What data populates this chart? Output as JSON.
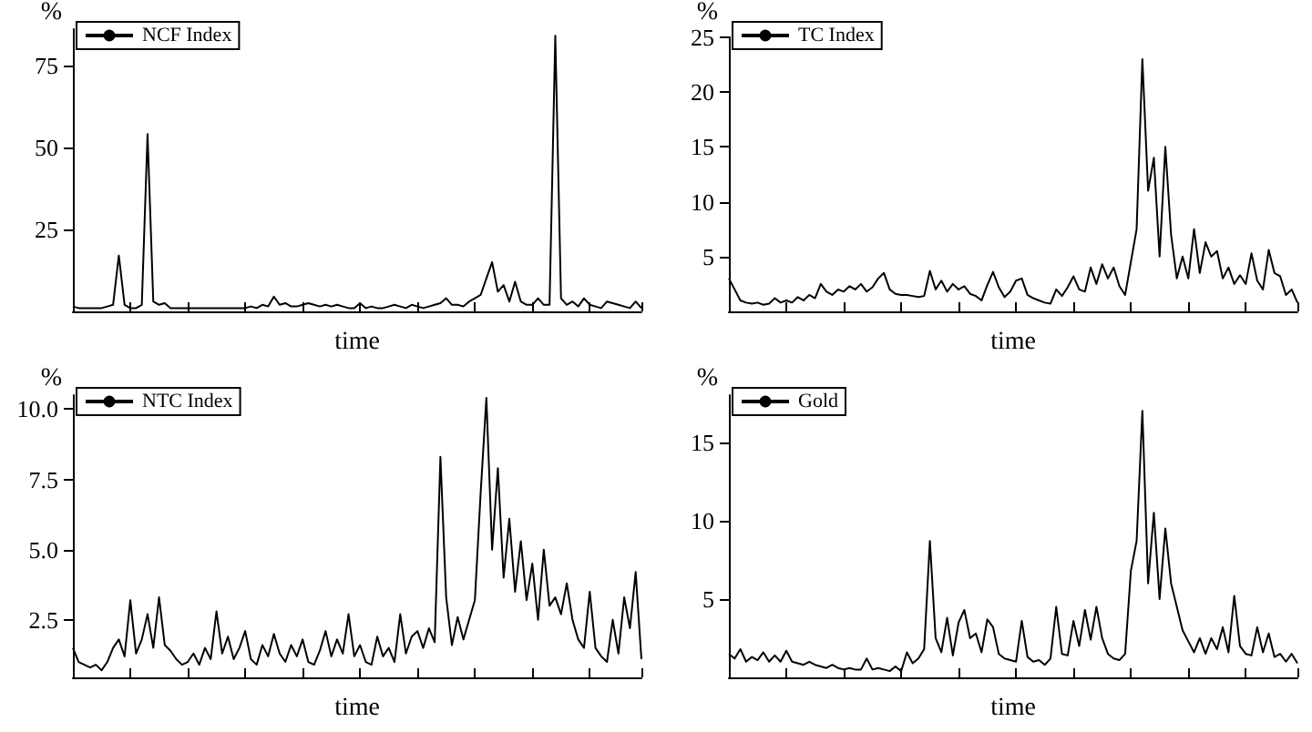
{
  "chart_data": [
    {
      "type": "line",
      "xlabel": "time",
      "ylabel": "%",
      "legend": "top left",
      "tick_labels": "y",
      "ylim": [
        0,
        86
      ],
      "yticks": [
        25,
        50,
        75
      ],
      "categories": [
        null,
        null,
        null,
        null,
        null,
        null,
        null,
        null,
        null,
        null,
        null,
        null,
        null,
        null,
        null,
        null,
        null,
        null,
        null,
        null,
        null,
        null,
        null,
        null,
        null,
        null,
        null,
        null,
        null,
        null,
        null,
        null,
        null,
        null,
        null,
        null,
        null,
        null,
        null,
        null,
        null,
        null,
        null,
        null,
        null,
        null,
        null,
        null,
        null,
        null,
        null,
        null,
        null,
        null,
        null,
        null,
        null,
        null,
        null,
        null,
        null,
        null,
        null,
        null,
        null,
        null,
        null,
        null,
        null,
        null,
        null,
        null,
        null,
        null,
        null,
        null,
        null,
        null,
        null,
        null,
        null,
        null,
        null,
        null,
        null,
        null,
        null,
        null,
        null,
        null,
        null,
        null,
        null,
        null,
        null,
        null,
        null,
        null,
        null,
        null
      ],
      "series": [
        {
          "name": "NCF Index",
          "color": "#000000",
          "values": [
            1.5,
            1,
            1,
            1,
            1,
            1,
            1.5,
            2,
            17,
            2,
            1,
            1,
            2,
            54,
            3,
            2,
            2.5,
            1,
            1,
            1,
            1,
            1,
            1,
            1,
            1,
            1,
            1,
            1,
            1,
            1,
            1,
            1.5,
            1,
            2,
            1.5,
            4.5,
            2,
            2.5,
            1.5,
            1.5,
            2,
            2.5,
            2,
            1.5,
            2,
            1.5,
            2,
            1.5,
            1,
            1,
            2.5,
            1,
            1.5,
            1,
            1,
            1.5,
            2,
            1.5,
            1,
            2,
            1.5,
            1,
            1.5,
            2,
            2.5,
            4,
            2,
            2,
            1.5,
            3,
            4,
            5,
            10,
            15,
            6,
            8,
            3,
            9,
            3,
            2,
            2,
            4,
            2,
            2,
            84,
            4,
            2,
            3,
            1.5,
            4,
            2,
            1.5,
            1,
            3,
            2.5,
            2,
            1.5,
            1,
            3,
            1
          ]
        }
      ]
    },
    {
      "type": "line",
      "xlabel": "time",
      "ylabel": "%",
      "legend": "top left",
      "tick_labels": "y",
      "ylim": [
        0,
        25
      ],
      "yticks": [
        5,
        10,
        15,
        20,
        25
      ],
      "categories": [
        null,
        null,
        null,
        null,
        null,
        null,
        null,
        null,
        null,
        null,
        null,
        null,
        null,
        null,
        null,
        null,
        null,
        null,
        null,
        null,
        null,
        null,
        null,
        null,
        null,
        null,
        null,
        null,
        null,
        null,
        null,
        null,
        null,
        null,
        null,
        null,
        null,
        null,
        null,
        null,
        null,
        null,
        null,
        null,
        null,
        null,
        null,
        null,
        null,
        null,
        null,
        null,
        null,
        null,
        null,
        null,
        null,
        null,
        null,
        null,
        null,
        null,
        null,
        null,
        null,
        null,
        null,
        null,
        null,
        null,
        null,
        null,
        null,
        null,
        null,
        null,
        null,
        null,
        null,
        null,
        null,
        null,
        null,
        null,
        null,
        null,
        null,
        null,
        null,
        null,
        null,
        null,
        null,
        null,
        null,
        null,
        null,
        null,
        null,
        null
      ],
      "series": [
        {
          "name": "TC Index",
          "color": "#000000",
          "values": [
            3,
            2,
            1,
            0.8,
            0.7,
            0.8,
            0.6,
            0.7,
            1.2,
            0.8,
            1,
            0.8,
            1.3,
            1,
            1.5,
            1.2,
            2.5,
            1.8,
            1.5,
            2,
            1.8,
            2.3,
            2,
            2.5,
            1.8,
            2.2,
            3,
            3.5,
            2,
            1.6,
            1.5,
            1.5,
            1.4,
            1.3,
            1.4,
            3.7,
            2,
            2.8,
            1.8,
            2.5,
            2,
            2.3,
            1.6,
            1.4,
            1,
            2.4,
            3.6,
            2.2,
            1.3,
            1.8,
            2.8,
            3,
            1.5,
            1.2,
            1,
            0.8,
            0.7,
            2,
            1.4,
            2.2,
            3.2,
            2,
            1.8,
            4,
            2.5,
            4.3,
            3,
            4,
            2.3,
            1.5,
            4.5,
            7.5,
            23,
            11,
            14,
            5,
            15,
            7,
            3,
            5,
            3,
            7.5,
            3.5,
            6.3,
            5,
            5.5,
            3,
            4,
            2.5,
            3.3,
            2.5,
            5.3,
            2.8,
            2,
            5.6,
            3.5,
            3.2,
            1.5,
            2,
            0.8
          ]
        }
      ]
    },
    {
      "type": "line",
      "xlabel": "time",
      "ylabel": "%",
      "legend": "top left",
      "tick_labels": "y",
      "ylim": [
        0.45,
        10.5
      ],
      "yticks": [
        {
          "value": 2.5,
          "label": "2.5"
        },
        {
          "value": 5,
          "label": "5.0"
        },
        {
          "value": 7.5,
          "label": "7.5"
        },
        {
          "value": 10,
          "label": "10.0"
        }
      ],
      "categories": [
        null,
        null,
        null,
        null,
        null,
        null,
        null,
        null,
        null,
        null,
        null,
        null,
        null,
        null,
        null,
        null,
        null,
        null,
        null,
        null,
        null,
        null,
        null,
        null,
        null,
        null,
        null,
        null,
        null,
        null,
        null,
        null,
        null,
        null,
        null,
        null,
        null,
        null,
        null,
        null,
        null,
        null,
        null,
        null,
        null,
        null,
        null,
        null,
        null,
        null,
        null,
        null,
        null,
        null,
        null,
        null,
        null,
        null,
        null,
        null,
        null,
        null,
        null,
        null,
        null,
        null,
        null,
        null,
        null,
        null,
        null,
        null,
        null,
        null,
        null,
        null,
        null,
        null,
        null,
        null,
        null,
        null,
        null,
        null,
        null,
        null,
        null,
        null,
        null,
        null,
        null,
        null,
        null,
        null,
        null,
        null,
        null,
        null,
        null,
        null
      ],
      "series": [
        {
          "name": "NTC Index",
          "color": "#000000",
          "values": [
            1.5,
            1,
            0.9,
            0.8,
            0.9,
            0.7,
            1,
            1.5,
            1.8,
            1.2,
            3.2,
            1.3,
            1.8,
            2.7,
            1.5,
            3.3,
            1.6,
            1.4,
            1.1,
            0.9,
            1,
            1.3,
            0.9,
            1.5,
            1.1,
            2.8,
            1.3,
            1.9,
            1.1,
            1.5,
            2.1,
            1.1,
            0.9,
            1.6,
            1.2,
            2,
            1.3,
            1,
            1.6,
            1.2,
            1.8,
            1,
            0.9,
            1.4,
            2.1,
            1.2,
            1.8,
            1.3,
            2.7,
            1.2,
            1.6,
            1,
            0.9,
            1.9,
            1.2,
            1.5,
            1,
            2.7,
            1.3,
            1.9,
            2.1,
            1.5,
            2.2,
            1.7,
            8.3,
            3.3,
            1.6,
            2.6,
            1.8,
            2.5,
            3.2,
            7,
            10.4,
            5,
            7.9,
            4,
            6.1,
            3.5,
            5.3,
            3.2,
            4.5,
            2.5,
            5,
            3,
            3.3,
            2.7,
            3.8,
            2.5,
            1.8,
            1.5,
            3.5,
            1.5,
            1.2,
            1,
            2.5,
            1.3,
            3.3,
            2.2,
            4.2,
            1.1
          ]
        }
      ]
    },
    {
      "type": "line",
      "xlabel": "time",
      "ylabel": "%",
      "legend": "top left",
      "tick_labels": "y",
      "ylim": [
        0,
        18
      ],
      "yticks": [
        5,
        10,
        15
      ],
      "categories": [
        null,
        null,
        null,
        null,
        null,
        null,
        null,
        null,
        null,
        null,
        null,
        null,
        null,
        null,
        null,
        null,
        null,
        null,
        null,
        null,
        null,
        null,
        null,
        null,
        null,
        null,
        null,
        null,
        null,
        null,
        null,
        null,
        null,
        null,
        null,
        null,
        null,
        null,
        null,
        null,
        null,
        null,
        null,
        null,
        null,
        null,
        null,
        null,
        null,
        null,
        null,
        null,
        null,
        null,
        null,
        null,
        null,
        null,
        null,
        null,
        null,
        null,
        null,
        null,
        null,
        null,
        null,
        null,
        null,
        null,
        null,
        null,
        null,
        null,
        null,
        null,
        null,
        null,
        null,
        null,
        null,
        null,
        null,
        null,
        null,
        null,
        null,
        null,
        null,
        null,
        null,
        null,
        null,
        null,
        null,
        null,
        null,
        null,
        null,
        null
      ],
      "series": [
        {
          "name": "Gold",
          "color": "#000000",
          "values": [
            1.5,
            1.2,
            1.8,
            1,
            1.3,
            1.1,
            1.6,
            1,
            1.4,
            1,
            1.7,
            1,
            0.9,
            0.8,
            1,
            0.8,
            0.7,
            0.6,
            0.8,
            0.6,
            0.5,
            0.6,
            0.5,
            0.5,
            1.2,
            0.5,
            0.6,
            0.5,
            0.4,
            0.7,
            0.4,
            1.6,
            0.9,
            1.2,
            1.8,
            8.7,
            2.5,
            1.6,
            3.8,
            1.4,
            3.5,
            4.3,
            2.5,
            2.8,
            1.6,
            3.7,
            3.2,
            1.5,
            1.2,
            1.1,
            1,
            3.6,
            1.3,
            1,
            1.1,
            0.8,
            1.2,
            4.5,
            1.5,
            1.4,
            3.6,
            2,
            4.3,
            2.4,
            4.5,
            2.5,
            1.5,
            1.2,
            1.1,
            1.5,
            6.8,
            8.7,
            17,
            6,
            10.5,
            5,
            9.5,
            6,
            4.5,
            3,
            2.3,
            1.6,
            2.5,
            1.5,
            2.5,
            1.8,
            3.2,
            1.6,
            5.2,
            2,
            1.5,
            1.4,
            3.2,
            1.6,
            2.8,
            1.3,
            1.5,
            1,
            1.5,
            0.9
          ]
        }
      ]
    }
  ]
}
